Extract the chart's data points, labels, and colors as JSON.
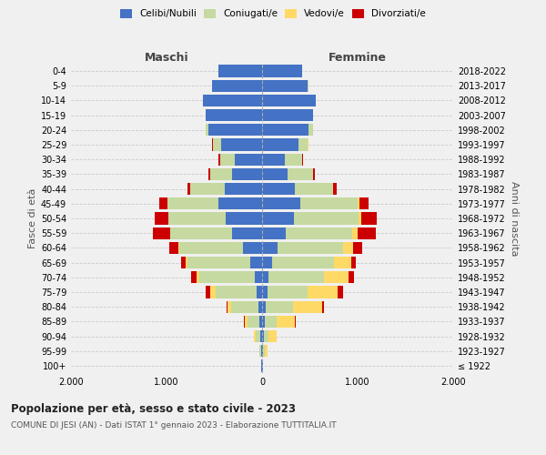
{
  "age_groups": [
    "100+",
    "95-99",
    "90-94",
    "85-89",
    "80-84",
    "75-79",
    "70-74",
    "65-69",
    "60-64",
    "55-59",
    "50-54",
    "45-49",
    "40-44",
    "35-39",
    "30-34",
    "25-29",
    "20-24",
    "15-19",
    "10-14",
    "5-9",
    "0-4"
  ],
  "birth_years": [
    "≤ 1922",
    "1923-1927",
    "1928-1932",
    "1933-1937",
    "1938-1942",
    "1943-1947",
    "1948-1952",
    "1953-1957",
    "1958-1962",
    "1963-1967",
    "1968-1972",
    "1973-1977",
    "1978-1982",
    "1983-1987",
    "1988-1992",
    "1993-1997",
    "1998-2002",
    "2003-2007",
    "2008-2012",
    "2013-2017",
    "2018-2022"
  ],
  "males": {
    "celibi": [
      5,
      10,
      15,
      25,
      40,
      60,
      80,
      120,
      200,
      310,
      380,
      460,
      390,
      310,
      290,
      430,
      560,
      590,
      620,
      520,
      460
    ],
    "coniugati": [
      3,
      15,
      50,
      130,
      280,
      430,
      580,
      660,
      670,
      650,
      600,
      530,
      360,
      230,
      150,
      80,
      30,
      5,
      2,
      1,
      0
    ],
    "vedovi": [
      0,
      5,
      20,
      30,
      40,
      55,
      30,
      20,
      10,
      5,
      5,
      5,
      2,
      2,
      1,
      1,
      0,
      0,
      0,
      0,
      0
    ],
    "divorziati": [
      0,
      0,
      5,
      10,
      15,
      50,
      55,
      50,
      90,
      180,
      140,
      80,
      30,
      20,
      15,
      10,
      5,
      0,
      0,
      0,
      0
    ]
  },
  "females": {
    "nubili": [
      5,
      10,
      15,
      25,
      40,
      55,
      70,
      100,
      160,
      250,
      330,
      400,
      340,
      270,
      240,
      380,
      490,
      530,
      560,
      480,
      420
    ],
    "coniugate": [
      2,
      15,
      55,
      130,
      280,
      420,
      580,
      650,
      690,
      690,
      680,
      600,
      400,
      260,
      175,
      100,
      40,
      5,
      2,
      1,
      0
    ],
    "vedove": [
      5,
      30,
      80,
      190,
      310,
      320,
      250,
      180,
      100,
      60,
      30,
      15,
      5,
      3,
      2,
      1,
      0,
      0,
      0,
      0,
      0
    ],
    "divorziate": [
      0,
      0,
      5,
      10,
      20,
      50,
      60,
      55,
      100,
      190,
      160,
      100,
      35,
      20,
      15,
      8,
      3,
      0,
      0,
      0,
      0
    ]
  },
  "colors": {
    "celibi": "#4472C4",
    "coniugati": "#c5d9a0",
    "vedovi": "#FFD966",
    "divorziati": "#CC0000"
  },
  "title": "Popolazione per età, sesso e stato civile - 2023",
  "subtitle": "COMUNE DI JESI (AN) - Dati ISTAT 1° gennaio 2023 - Elaborazione TUTTITALIA.IT",
  "xlabel_left": "Maschi",
  "xlabel_right": "Femmine",
  "ylabel_left": "Fasce di età",
  "ylabel_right": "Anni di nascita",
  "xlim": 2000,
  "legend_labels": [
    "Celibi/Nubili",
    "Coniugati/e",
    "Vedovi/e",
    "Divorziati/e"
  ],
  "background_color": "#f0f0f0"
}
